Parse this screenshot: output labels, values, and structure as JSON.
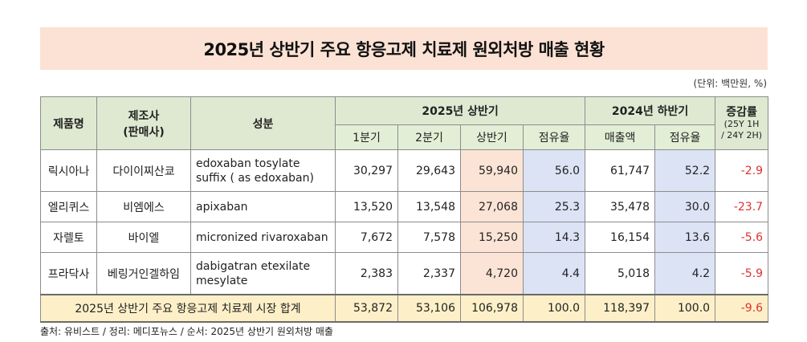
{
  "title": "2025년 상반기 주요 항응고제 치료제 원외처방 매출 현황",
  "unit": "(단위: 백만원, %)",
  "headers": {
    "product": "제품명",
    "maker_line1": "제조사",
    "maker_line2": "(판매사)",
    "ingredient": "성분",
    "h2025": "2025년 상반기",
    "h2024": "2024년 하반기",
    "growth": "증감률",
    "growth_sub1": "(25Y 1H",
    "growth_sub2": "/ 24Y 2H)",
    "q1": "1분기",
    "q2": "2분기",
    "half": "상반기",
    "share": "점유율",
    "sales": "매출액",
    "share2": "점유율"
  },
  "rows": [
    {
      "product": "릭시아나",
      "maker": "다이이찌산쿄",
      "ingredient": "edoxaban tosylate suffix ( as edoxaban)",
      "q1": "30,297",
      "q2": "29,643",
      "half": "59,940",
      "share": "56.0",
      "sales": "61,747",
      "share2": "52.2",
      "growth": "-2.9"
    },
    {
      "product": "엘리퀴스",
      "maker": "비엠에스",
      "ingredient": "apixaban",
      "q1": "13,520",
      "q2": "13,548",
      "half": "27,068",
      "share": "25.3",
      "sales": "35,478",
      "share2": "30.0",
      "growth": "-23.7"
    },
    {
      "product": "자렐토",
      "maker": "바이엘",
      "ingredient": "micronized rivaroxaban",
      "q1": "7,672",
      "q2": "7,578",
      "half": "15,250",
      "share": "14.3",
      "sales": "16,154",
      "share2": "13.6",
      "growth": "-5.6"
    },
    {
      "product": "프라닥사",
      "maker": "베링거인겔하임",
      "ingredient": "dabigatran etexilate mesylate",
      "q1": "2,383",
      "q2": "2,337",
      "half": "4,720",
      "share": "4.4",
      "sales": "5,018",
      "share2": "4.2",
      "growth": "-5.9"
    }
  ],
  "total": {
    "label": "2025년 상반기 주요 항응고제 치료제 시장 합계",
    "q1": "53,872",
    "q2": "53,106",
    "half": "106,978",
    "share": "100.0",
    "sales": "118,397",
    "share2": "100.0",
    "growth": "-9.6"
  },
  "source": "출처: 유비스트 / 정리: 메디포뉴스 / 순서: 2025년 상반기 원외처방 매출",
  "colors": {
    "title_bg": "#fbe2d4",
    "header_bg": "#dfe9d2",
    "half_col_bg": "#fbe4d6",
    "share_col_bg": "#dce3f5",
    "total_bg": "#fdf0c8",
    "negative": "#e03030"
  }
}
